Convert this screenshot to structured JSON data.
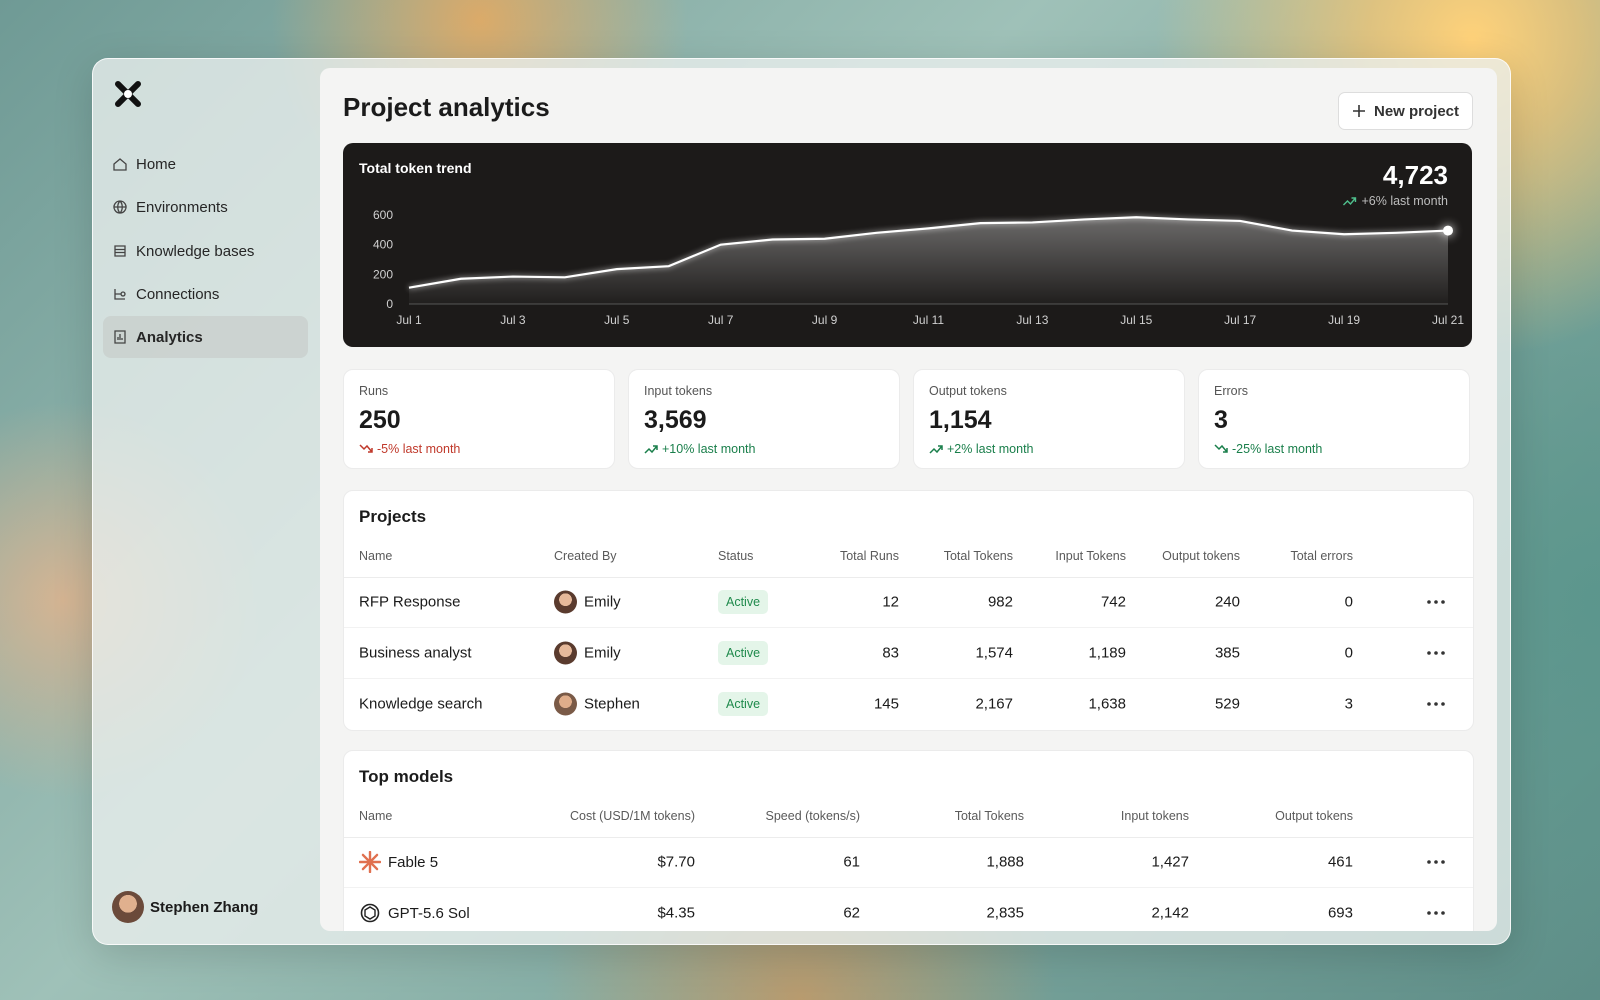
{
  "sidebar": {
    "nav": [
      "Home",
      "Environments",
      "Knowledge bases",
      "Connections",
      "Analytics"
    ],
    "user": "Stephen Zhang"
  },
  "header": {
    "title": "Project analytics",
    "button": "New project"
  },
  "chart_data": {
    "type": "line",
    "title": "Total token trend",
    "headline": "4,723",
    "headline_change": "+6% last month",
    "categories": [
      "Jul 1",
      null,
      "Jul 3",
      null,
      "Jul 5",
      null,
      "Jul 7",
      null,
      "Jul 9",
      null,
      "Jul 11",
      null,
      "Jul 13",
      null,
      "Jul 15",
      null,
      "Jul 17",
      null,
      "Jul 19",
      null,
      "Jul 21"
    ],
    "values": [
      110,
      170,
      185,
      180,
      235,
      255,
      400,
      435,
      440,
      480,
      510,
      545,
      550,
      570,
      585,
      570,
      560,
      495,
      470,
      480,
      495
    ],
    "color": "#ffffff",
    "ylim": [
      0,
      600
    ],
    "yticks": [
      0,
      200,
      400,
      600
    ],
    "grid": false
  },
  "stats": [
    {
      "label": "Runs",
      "value": "250",
      "change": "-5% last month",
      "trend": "down",
      "tone": "negative"
    },
    {
      "label": "Input tokens",
      "value": "3,569",
      "change": "+10% last month",
      "trend": "up",
      "tone": "positive"
    },
    {
      "label": "Output tokens",
      "value": "1,154",
      "change": "+2% last month",
      "trend": "up",
      "tone": "positive"
    },
    {
      "label": "Errors",
      "value": "3",
      "change": "-25% last month",
      "trend": "down",
      "tone": "positive"
    }
  ],
  "projects": {
    "title": "Projects",
    "columns": [
      "Name",
      "Created By",
      "Status",
      "Total Runs",
      "Total Tokens",
      "Input Tokens",
      "Output tokens",
      "Total errors"
    ],
    "rows": [
      [
        "RFP Response",
        "Emily",
        "Active",
        "12",
        "982",
        "742",
        "240",
        "0"
      ],
      [
        "Business analyst",
        "Emily",
        "Active",
        "83",
        "1,574",
        "1,189",
        "385",
        "0"
      ],
      [
        "Knowledge search",
        "Stephen",
        "Active",
        "145",
        "2,167",
        "1,638",
        "529",
        "3"
      ]
    ]
  },
  "models": {
    "title": "Top models",
    "columns": [
      "Name",
      "Cost (USD/1M tokens)",
      "Speed (tokens/s)",
      "Total Tokens",
      "Input tokens",
      "Output tokens"
    ],
    "rows": [
      [
        "Fable 5",
        "$7.70",
        "61",
        "1,888",
        "1,427",
        "461"
      ],
      [
        "GPT-5.6 Sol",
        "$4.35",
        "62",
        "2,835",
        "2,142",
        "693"
      ]
    ]
  }
}
